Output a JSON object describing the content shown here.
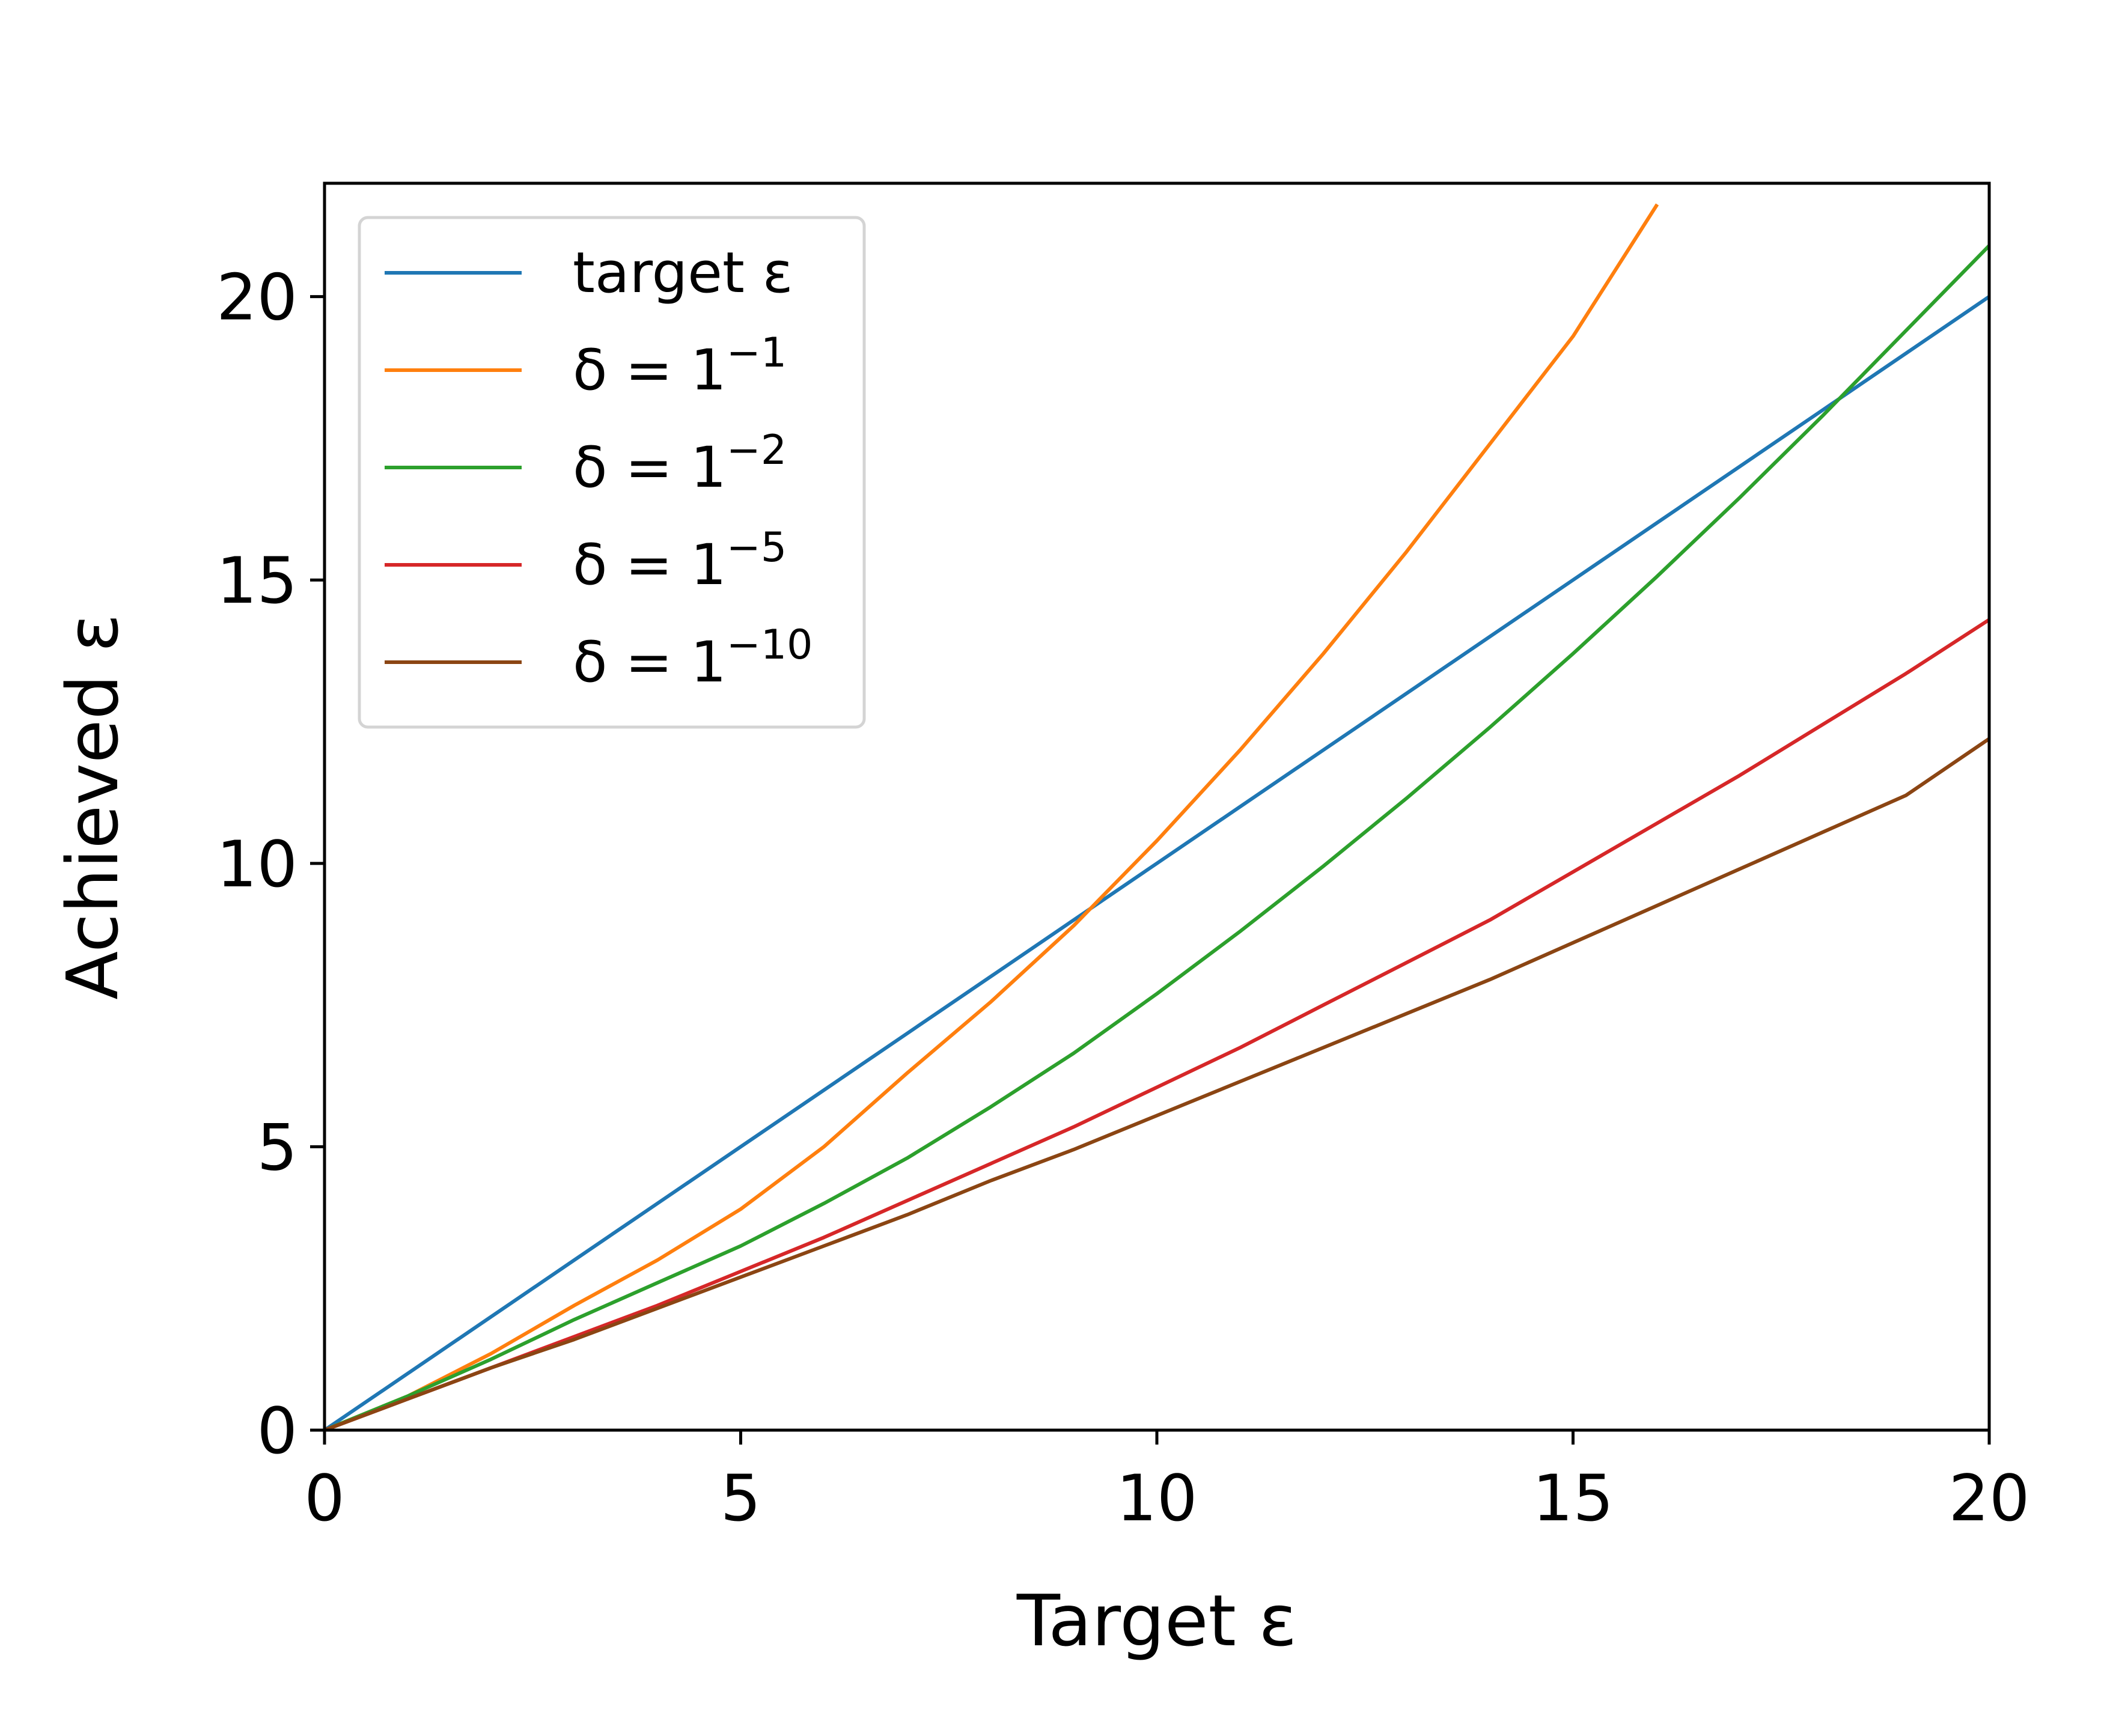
{
  "chart_data": {
    "type": "line",
    "xlabel": "Target ε",
    "ylabel": "Achieved ε",
    "xlim": [
      0,
      20
    ],
    "ylim": [
      0,
      22
    ],
    "xticks": [
      "0",
      "5",
      "10",
      "15",
      "20"
    ],
    "yticks": [
      "0",
      "5",
      "10",
      "15",
      "20"
    ],
    "grid": false,
    "legend_position": "top-left",
    "x": [
      0,
      1,
      2,
      3,
      4,
      5,
      6,
      7,
      8,
      9,
      10,
      11,
      12,
      13,
      14,
      15,
      16,
      17,
      18,
      19,
      20
    ],
    "series": [
      {
        "name": "target ε",
        "color": "#1f77b4",
        "values": [
          0,
          1,
          2,
          3,
          4,
          5,
          6,
          7,
          8,
          9,
          10,
          11,
          12,
          13,
          14,
          15,
          16,
          17,
          18,
          19,
          20
        ]
      },
      {
        "name_prefix": "δ = 1",
        "name_exp": "−1",
        "color": "#ff7f0e",
        "values": [
          0,
          0.6,
          1.35,
          2.2,
          3.0,
          3.9,
          5.0,
          6.3,
          7.55,
          8.9,
          10.4,
          12.0,
          13.7,
          15.5,
          17.4,
          19.3,
          21.6,
          null,
          null,
          null,
          null
        ]
      },
      {
        "name_prefix": "δ = 1",
        "name_exp": "−2",
        "color": "#2ca02c",
        "values": [
          0,
          0.6,
          1.25,
          1.95,
          2.6,
          3.25,
          4.0,
          4.8,
          5.7,
          6.65,
          7.7,
          8.8,
          9.95,
          11.15,
          12.4,
          13.7,
          15.05,
          16.45,
          17.9,
          19.4,
          20.9
        ]
      },
      {
        "name_prefix": "δ = 1",
        "name_exp": "−5",
        "color": "#d62728",
        "values": [
          0,
          0.55,
          1.1,
          1.65,
          2.2,
          2.8,
          3.4,
          4.05,
          4.7,
          5.35,
          6.05,
          6.75,
          7.5,
          8.25,
          9.0,
          9.85,
          10.7,
          11.55,
          12.45,
          13.35,
          14.3
        ]
      },
      {
        "name_prefix": "δ = 1",
        "name_exp": "−10",
        "color": "#8b4513",
        "values": [
          0,
          0.55,
          1.1,
          1.6,
          2.15,
          2.7,
          3.25,
          3.8,
          4.4,
          4.95,
          5.55,
          6.15,
          6.75,
          7.35,
          7.95,
          8.6,
          9.25,
          9.9,
          10.55,
          11.2,
          12.2
        ]
      }
    ]
  }
}
